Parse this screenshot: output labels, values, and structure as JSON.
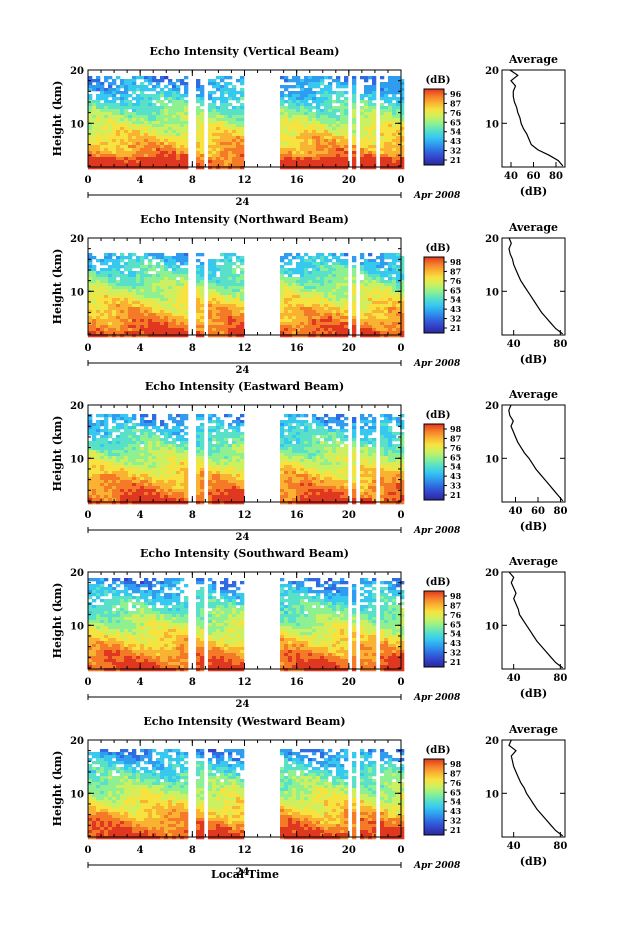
{
  "page": {
    "xlabel_shared": "Local Time"
  },
  "palette": [
    "#2a2a9a",
    "#3340c8",
    "#2f6ae0",
    "#2f9cf0",
    "#37c8f0",
    "#58e0c8",
    "#8ef090",
    "#cdf060",
    "#f7e340",
    "#f9b232",
    "#f57a28",
    "#e03820"
  ],
  "chart_data": [
    {
      "type": "heatmap",
      "title": "Echo Intensity (Vertical Beam)",
      "ylabel": "Height (km)",
      "yticks": [
        "20",
        "10"
      ],
      "ylim": [
        1.8,
        20
      ],
      "xticks": [
        "0",
        "4",
        "8",
        "12",
        "16",
        "20",
        "0"
      ],
      "xlim": [
        0,
        24
      ],
      "date_label": "24",
      "month_label": "Apr 2008",
      "colorbar": {
        "unit": "(dB)",
        "ticks": [
          "96",
          "87",
          "76",
          "65",
          "54",
          "43",
          "32",
          "21"
        ]
      },
      "gaps": [
        [
          7.6,
          8.0
        ],
        [
          8.6,
          8.9
        ],
        [
          11.8,
          14.6
        ],
        [
          19.7,
          20.1
        ],
        [
          20.4,
          20.7
        ],
        [
          21.8,
          22.1
        ]
      ],
      "top_km": 19.0,
      "profile": {
        "title": "Average",
        "xlabel": "(dB)",
        "xticks": [
          "40",
          "60",
          "80"
        ],
        "xlim": [
          32,
          88
        ],
        "heights": [
          2,
          3,
          4,
          5,
          6,
          7,
          8,
          9,
          10,
          11,
          12,
          13,
          14,
          15,
          16,
          17,
          18,
          19,
          20
        ],
        "values": [
          86,
          82,
          74,
          64,
          58,
          56,
          54,
          51,
          49,
          48,
          46,
          45,
          43,
          42,
          42,
          44,
          40,
          46,
          39
        ]
      }
    },
    {
      "type": "heatmap",
      "title": "Echo Intensity (Northward Beam)",
      "ylabel": "Height (km)",
      "yticks": [
        "20",
        "10"
      ],
      "ylim": [
        1.8,
        20
      ],
      "xticks": [
        "0",
        "4",
        "8",
        "12",
        "16",
        "20",
        "0"
      ],
      "xlim": [
        0,
        24
      ],
      "date_label": "24",
      "month_label": "Apr 2008",
      "colorbar": {
        "unit": "(dB)",
        "ticks": [
          "98",
          "87",
          "76",
          "65",
          "54",
          "43",
          "32",
          "21"
        ]
      },
      "gaps": [
        [
          7.6,
          8.0
        ],
        [
          8.6,
          8.9
        ],
        [
          11.8,
          14.6
        ],
        [
          19.7,
          20.1
        ],
        [
          20.4,
          20.7
        ]
      ],
      "top_km": 17.5,
      "profile": {
        "title": "Average",
        "xlabel": "(dB)",
        "xticks": [
          "40",
          "80"
        ],
        "xlim": [
          30,
          84
        ],
        "heights": [
          2,
          3,
          4,
          5,
          6,
          7,
          8,
          9,
          10,
          11,
          12,
          13,
          14,
          15,
          16,
          17,
          18,
          19,
          20
        ],
        "values": [
          82,
          76,
          72,
          68,
          64,
          61,
          58,
          55,
          52,
          49,
          46,
          44,
          42,
          40,
          39,
          37,
          36,
          38,
          36
        ]
      }
    },
    {
      "type": "heatmap",
      "title": "Echo Intensity (Eastward Beam)",
      "ylabel": "Height (km)",
      "yticks": [
        "20",
        "10"
      ],
      "ylim": [
        1.8,
        20
      ],
      "xticks": [
        "0",
        "4",
        "8",
        "12",
        "16",
        "20",
        "0"
      ],
      "xlim": [
        0,
        24
      ],
      "date_label": "24",
      "month_label": "Apr 2008",
      "colorbar": {
        "unit": "(dB)",
        "ticks": [
          "98",
          "87",
          "76",
          "65",
          "54",
          "43",
          "33",
          "21"
        ]
      },
      "gaps": [
        [
          7.6,
          8.0
        ],
        [
          8.6,
          8.9
        ],
        [
          11.8,
          14.6
        ],
        [
          19.7,
          20.1
        ],
        [
          20.4,
          20.7
        ],
        [
          21.8,
          22.1
        ]
      ],
      "top_km": 18.5,
      "profile": {
        "title": "Average",
        "xlabel": "(dB)",
        "xticks": [
          "40",
          "60",
          "80"
        ],
        "xlim": [
          28,
          84
        ],
        "heights": [
          2,
          3,
          4,
          5,
          6,
          7,
          8,
          9,
          10,
          11,
          12,
          13,
          14,
          15,
          16,
          17,
          18,
          19,
          20
        ],
        "values": [
          82,
          78,
          74,
          70,
          66,
          62,
          58,
          55,
          52,
          48,
          45,
          42,
          40,
          38,
          36,
          38,
          35,
          34,
          36
        ]
      }
    },
    {
      "type": "heatmap",
      "title": "Echo Intensity (Southward Beam)",
      "ylabel": "Height (km)",
      "yticks": [
        "20",
        "10"
      ],
      "ylim": [
        1.8,
        20
      ],
      "xticks": [
        "0",
        "4",
        "8",
        "12",
        "16",
        "20",
        "0"
      ],
      "xlim": [
        0,
        24
      ],
      "date_label": "24",
      "month_label": "Apr 2008",
      "colorbar": {
        "unit": "(dB)",
        "ticks": [
          "98",
          "87",
          "76",
          "65",
          "54",
          "43",
          "32",
          "21"
        ]
      },
      "gaps": [
        [
          7.6,
          8.0
        ],
        [
          8.6,
          8.9
        ],
        [
          11.8,
          14.6
        ],
        [
          19.7,
          20.1
        ],
        [
          20.4,
          20.7
        ],
        [
          21.8,
          22.1
        ]
      ],
      "top_km": 19.0,
      "profile": {
        "title": "Average",
        "xlabel": "(dB)",
        "xticks": [
          "40",
          "80"
        ],
        "xlim": [
          30,
          84
        ],
        "heights": [
          2,
          3,
          4,
          5,
          6,
          7,
          8,
          9,
          10,
          11,
          12,
          13,
          14,
          15,
          16,
          17,
          18,
          19,
          20
        ],
        "values": [
          82,
          76,
          72,
          68,
          64,
          60,
          57,
          54,
          51,
          48,
          45,
          44,
          42,
          40,
          42,
          40,
          38,
          40,
          36
        ]
      }
    },
    {
      "type": "heatmap",
      "title": "Echo Intensity (Westward Beam)",
      "ylabel": "Height (km)",
      "yticks": [
        "20",
        "10"
      ],
      "ylim": [
        1.8,
        20
      ],
      "xticks": [
        "0",
        "4",
        "8",
        "12",
        "16",
        "20",
        "0"
      ],
      "xlim": [
        0,
        24
      ],
      "date_label": "24",
      "month_label": "Apr 2008",
      "colorbar": {
        "unit": "(dB)",
        "ticks": [
          "98",
          "87",
          "76",
          "65",
          "54",
          "43",
          "32",
          "21"
        ]
      },
      "gaps": [
        [
          7.6,
          8.0
        ],
        [
          8.6,
          8.9
        ],
        [
          11.8,
          14.6
        ],
        [
          19.7,
          20.1
        ],
        [
          20.4,
          20.7
        ],
        [
          21.8,
          22.1
        ]
      ],
      "top_km": 18.5,
      "profile": {
        "title": "Average",
        "xlabel": "(dB)",
        "xticks": [
          "40",
          "80"
        ],
        "xlim": [
          30,
          84
        ],
        "heights": [
          2,
          3,
          4,
          5,
          6,
          7,
          8,
          9,
          10,
          11,
          12,
          13,
          14,
          15,
          16,
          17,
          18,
          19,
          20
        ],
        "values": [
          82,
          76,
          72,
          68,
          64,
          60,
          57,
          54,
          51,
          49,
          46,
          44,
          42,
          40,
          39,
          38,
          42,
          36,
          38
        ]
      }
    }
  ]
}
